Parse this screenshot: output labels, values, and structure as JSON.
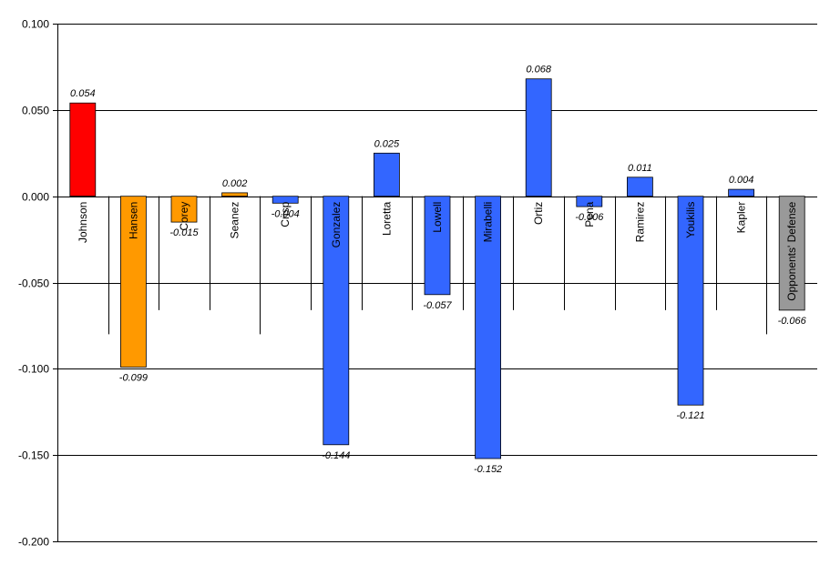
{
  "chart_data": {
    "type": "bar",
    "title": "",
    "xlabel": "",
    "ylabel": "",
    "ylim": [
      -0.2,
      0.1
    ],
    "yticks": [
      "0.100",
      "0.050",
      "0.000",
      "-0.050",
      "-0.100",
      "-0.150",
      "-0.200"
    ],
    "ytick_values": [
      0.1,
      0.05,
      0.0,
      -0.05,
      -0.1,
      -0.15,
      -0.2
    ],
    "grid": true,
    "legend": "none",
    "categories": [
      "Johnson",
      "Hansen",
      "Corey",
      "Seanez",
      "Crisp",
      "Gonzalez",
      "Loretta",
      "Lowell",
      "Mirabelli",
      "Ortiz",
      "Pena",
      "Ramirez",
      "Youkilis",
      "Kapler",
      "Opponents' Defense"
    ],
    "values": [
      0.054,
      -0.099,
      -0.015,
      0.002,
      -0.004,
      -0.144,
      0.025,
      -0.057,
      -0.152,
      0.068,
      -0.006,
      0.011,
      -0.121,
      0.004,
      -0.066
    ],
    "value_labels": [
      "0.054",
      "-0.099",
      "-0.015",
      "0.002",
      "-0.004",
      "-0.144",
      "0.025",
      "-0.057",
      "-0.152",
      "0.068",
      "-0.006",
      "0.011",
      "-0.121",
      "0.004",
      "-0.066"
    ],
    "colors": [
      "#ff0000",
      "#ff9900",
      "#ff9900",
      "#ff9900",
      "#3366ff",
      "#3366ff",
      "#3366ff",
      "#3366ff",
      "#3366ff",
      "#3366ff",
      "#3366ff",
      "#3366ff",
      "#3366ff",
      "#3366ff",
      "#999999"
    ],
    "separator_depths": [
      -0.08,
      -0.066,
      -0.066,
      -0.08,
      -0.066,
      -0.066,
      -0.066,
      -0.066,
      -0.066,
      -0.066,
      -0.066,
      -0.066,
      -0.066,
      -0.08
    ]
  }
}
